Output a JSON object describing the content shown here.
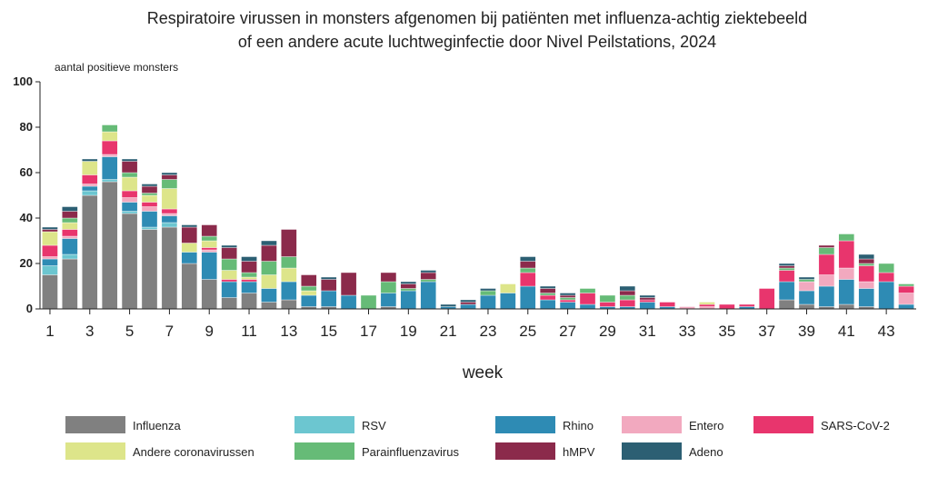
{
  "chart_data": {
    "type": "bar",
    "stacked": true,
    "title_lines": [
      "Respiratoire virussen in monsters afgenomen bij patiënten met influenza-achtig ziektebeeld",
      "of een andere acute luchtweginfectie door Nivel Peilstations, 2024"
    ],
    "ylabel": "aantal positieve monsters",
    "xlabel": "week",
    "ylim": [
      0,
      100
    ],
    "yticks": [
      0,
      20,
      40,
      60,
      80,
      100
    ],
    "xticks": [
      "1",
      "3",
      "5",
      "7",
      "9",
      "11",
      "13",
      "15",
      "17",
      "19",
      "21",
      "23",
      "25",
      "27",
      "29",
      "31",
      "33",
      "35",
      "37",
      "39",
      "41",
      "43"
    ],
    "categories": [
      1,
      2,
      3,
      4,
      5,
      6,
      7,
      8,
      9,
      10,
      11,
      12,
      13,
      14,
      15,
      16,
      17,
      18,
      19,
      20,
      21,
      22,
      23,
      24,
      25,
      26,
      27,
      28,
      29,
      30,
      31,
      32,
      33,
      34,
      35,
      36,
      37,
      38,
      39,
      40,
      41,
      42,
      43,
      44
    ],
    "legend_position": "bottom",
    "series": [
      {
        "name": "Influenza",
        "color": "#808080",
        "values": [
          15,
          22,
          50,
          56,
          42,
          35,
          36,
          20,
          13,
          5,
          7,
          3,
          4,
          1,
          1,
          0,
          0,
          1,
          0,
          0,
          0,
          0,
          0,
          0,
          0,
          0,
          0,
          0,
          0,
          0,
          0,
          0,
          0,
          0,
          0,
          0,
          0,
          4,
          2,
          1,
          2,
          1,
          0,
          0
        ]
      },
      {
        "name": "RSV",
        "color": "#6cc6d0",
        "values": [
          4,
          2,
          2,
          1,
          1,
          1,
          2,
          0,
          0,
          0,
          0,
          0,
          0,
          0,
          0,
          0,
          0,
          0,
          0,
          0,
          0,
          0,
          0,
          0,
          0,
          0,
          0,
          0,
          0,
          0,
          0,
          0,
          0,
          0,
          0,
          0,
          0,
          0,
          0,
          0,
          0,
          0,
          0,
          0
        ]
      },
      {
        "name": "Rhino",
        "color": "#2e8bb4",
        "values": [
          3,
          7,
          2,
          10,
          4,
          7,
          3,
          5,
          12,
          7,
          5,
          6,
          8,
          5,
          7,
          6,
          0,
          6,
          8,
          12,
          1,
          2,
          6,
          7,
          10,
          4,
          3,
          2,
          1,
          1,
          3,
          1,
          0,
          0,
          0,
          1,
          0,
          8,
          6,
          9,
          11,
          8,
          12,
          2
        ]
      },
      {
        "name": "Entero",
        "color": "#f2a9bf",
        "values": [
          1,
          1,
          1,
          1,
          2,
          2,
          1,
          0,
          1,
          0,
          0,
          0,
          0,
          0,
          0,
          0,
          0,
          0,
          0,
          0,
          0,
          0,
          0,
          0,
          0,
          0,
          0,
          0,
          0,
          0,
          0,
          0,
          1,
          1,
          0,
          0,
          0,
          0,
          4,
          5,
          5,
          3,
          0,
          5
        ]
      },
      {
        "name": "SARS-CoV-2",
        "color": "#e8356d",
        "values": [
          5,
          3,
          4,
          6,
          3,
          2,
          2,
          0,
          1,
          1,
          1,
          0,
          0,
          0,
          0,
          0,
          0,
          0,
          0,
          0,
          0,
          0,
          0,
          0,
          6,
          2,
          1,
          5,
          2,
          3,
          1,
          2,
          0,
          1,
          2,
          1,
          9,
          5,
          0,
          9,
          12,
          7,
          4,
          3
        ]
      },
      {
        "name": "Andere coronavirussen",
        "color": "#dde58a",
        "values": [
          6,
          3,
          6,
          4,
          6,
          3,
          9,
          4,
          3,
          4,
          1,
          6,
          6,
          2,
          0,
          0,
          0,
          0,
          0,
          0,
          0,
          0,
          0,
          4,
          0,
          0,
          0,
          0,
          0,
          0,
          0,
          0,
          0,
          1,
          0,
          0,
          0,
          0,
          0,
          0,
          0,
          0,
          0,
          0
        ]
      },
      {
        "name": "Parainfluenzavirus",
        "color": "#66bb77",
        "values": [
          0,
          2,
          0,
          3,
          2,
          1,
          4,
          0,
          2,
          5,
          2,
          6,
          5,
          2,
          0,
          0,
          6,
          5,
          1,
          1,
          0,
          0,
          2,
          0,
          2,
          1,
          1,
          2,
          3,
          2,
          0,
          0,
          0,
          0,
          0,
          0,
          0,
          1,
          1,
          3,
          3,
          1,
          4,
          1
        ]
      },
      {
        "name": "hMPV",
        "color": "#8b2a4b",
        "values": [
          1,
          3,
          0,
          0,
          5,
          3,
          2,
          7,
          5,
          5,
          5,
          7,
          12,
          5,
          5,
          10,
          0,
          4,
          2,
          3,
          0,
          1,
          0,
          0,
          3,
          2,
          1,
          0,
          0,
          2,
          1,
          0,
          0,
          0,
          0,
          0,
          0,
          1,
          0,
          1,
          0,
          2,
          0,
          0
        ]
      },
      {
        "name": "Adeno",
        "color": "#2c5f73",
        "values": [
          1,
          2,
          1,
          0,
          1,
          1,
          1,
          1,
          0,
          1,
          2,
          2,
          0,
          0,
          1,
          0,
          0,
          0,
          1,
          1,
          1,
          1,
          1,
          0,
          2,
          1,
          1,
          0,
          0,
          2,
          1,
          0,
          0,
          0,
          0,
          0,
          0,
          1,
          1,
          0,
          0,
          2,
          0,
          0
        ]
      }
    ]
  }
}
